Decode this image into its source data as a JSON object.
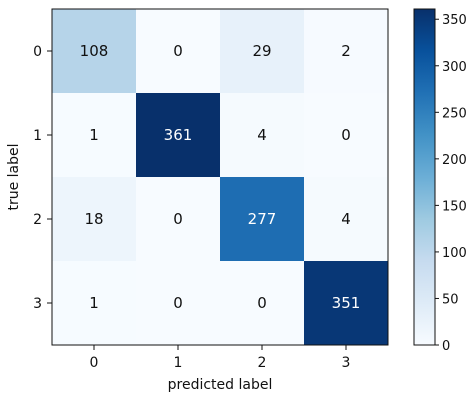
{
  "chart_data": {
    "type": "heatmap",
    "title": "",
    "xlabel": "predicted label",
    "ylabel": "true label",
    "x_categories": [
      "0",
      "1",
      "2",
      "3"
    ],
    "y_categories": [
      "0",
      "1",
      "2",
      "3"
    ],
    "values": [
      [
        108,
        0,
        29,
        2
      ],
      [
        1,
        361,
        4,
        0
      ],
      [
        18,
        0,
        277,
        4
      ],
      [
        1,
        0,
        0,
        351
      ]
    ],
    "colormap": "Blues",
    "colorbar": {
      "range": [
        0,
        361
      ],
      "ticks": [
        0,
        50,
        100,
        150,
        200,
        250,
        300,
        350
      ]
    },
    "colors": {
      "low": "#f7fbff",
      "high": "#08306b",
      "text_dark": "#111111",
      "text_light": "#ffffff"
    }
  }
}
